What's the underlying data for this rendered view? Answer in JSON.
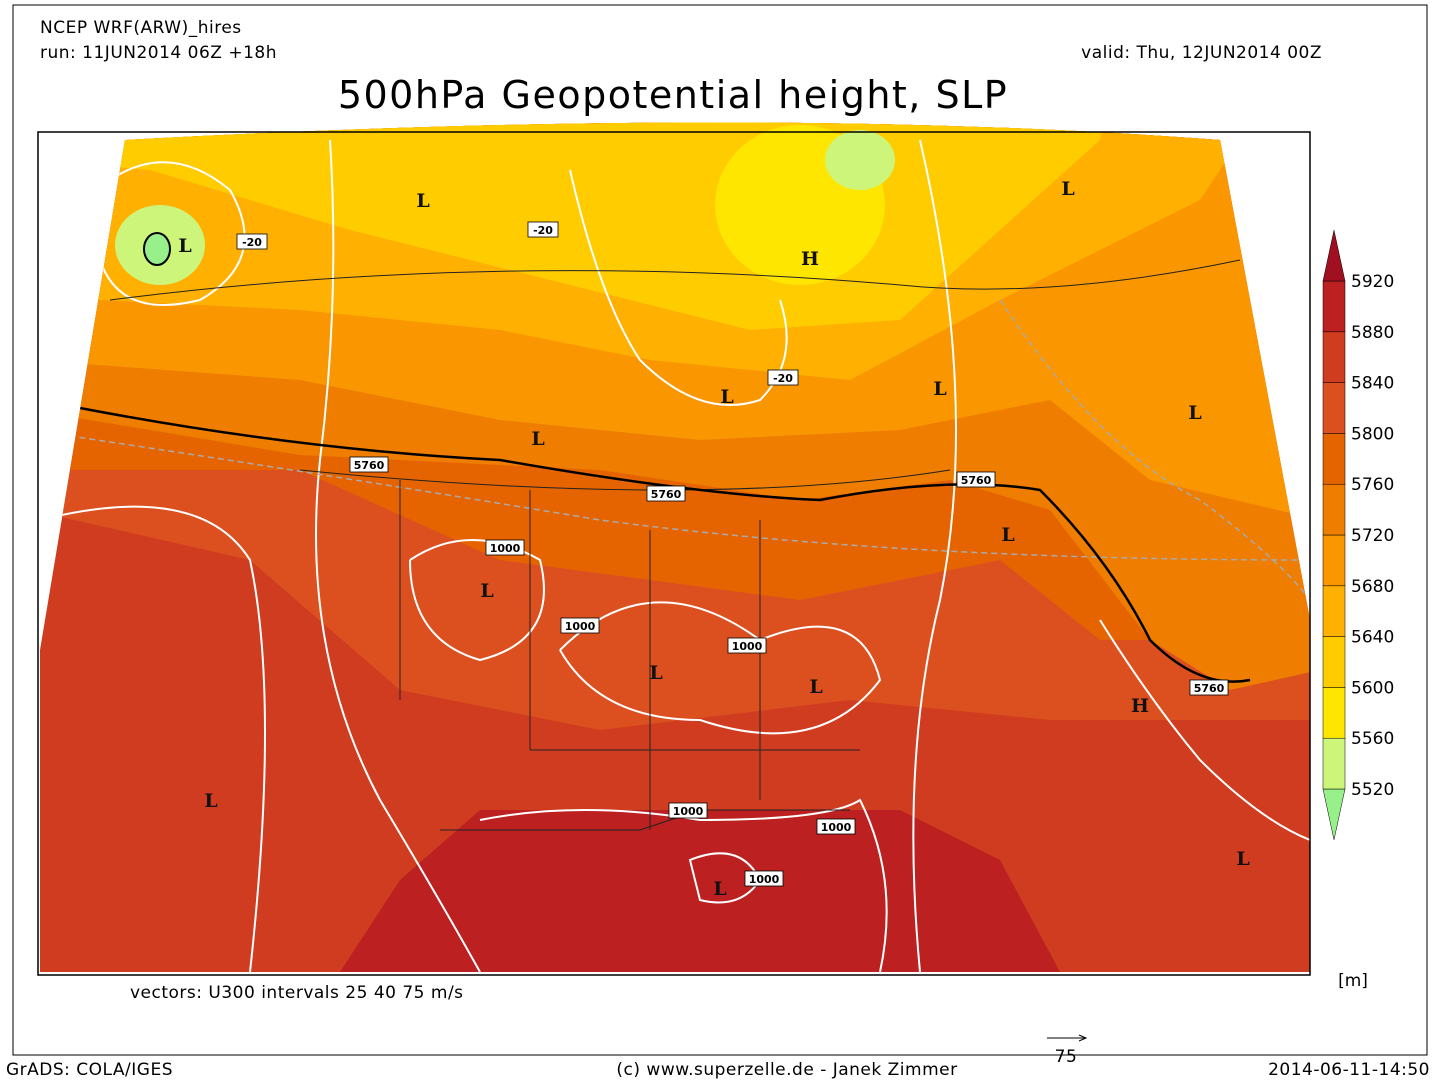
{
  "header": {
    "model": "NCEP WRF(ARW)_hires",
    "run": "run: 11JUN2014 06Z +18h",
    "valid": "valid: Thu, 12JUN2014 00Z",
    "title": "500hPa Geopotential height, SLP"
  },
  "map": {
    "labels": [
      "L",
      "L",
      "-20",
      "-20",
      "H",
      "L",
      "L",
      "-20",
      "L",
      "L",
      "L",
      "5760",
      "5760",
      "5760",
      "L",
      "1000",
      "L",
      "1000",
      "1000",
      "L",
      "L",
      "5760",
      "H",
      "L",
      "1000",
      "1000",
      "L",
      "1000",
      "L"
    ],
    "vectors_note": "vectors: U300 intervals 25 40 75 m/s",
    "reference_vector": "75"
  },
  "colorbar": {
    "levels": [
      5520,
      5560,
      5600,
      5640,
      5680,
      5720,
      5760,
      5800,
      5840,
      5880,
      5920
    ],
    "colors": [
      "#98f08a",
      "#cdf57a",
      "#ffe600",
      "#ffcc00",
      "#ffb000",
      "#fa9600",
      "#ee7d00",
      "#e66400",
      "#dc5020",
      "#d03c20",
      "#bc2020",
      "#a01020"
    ],
    "unit": "[m]"
  },
  "footer": {
    "software": "GrADS: COLA/IGES",
    "credit": "(c) www.superzelle.de - Janek Zimmer",
    "timestamp": "2014-06-11-14:50"
  }
}
